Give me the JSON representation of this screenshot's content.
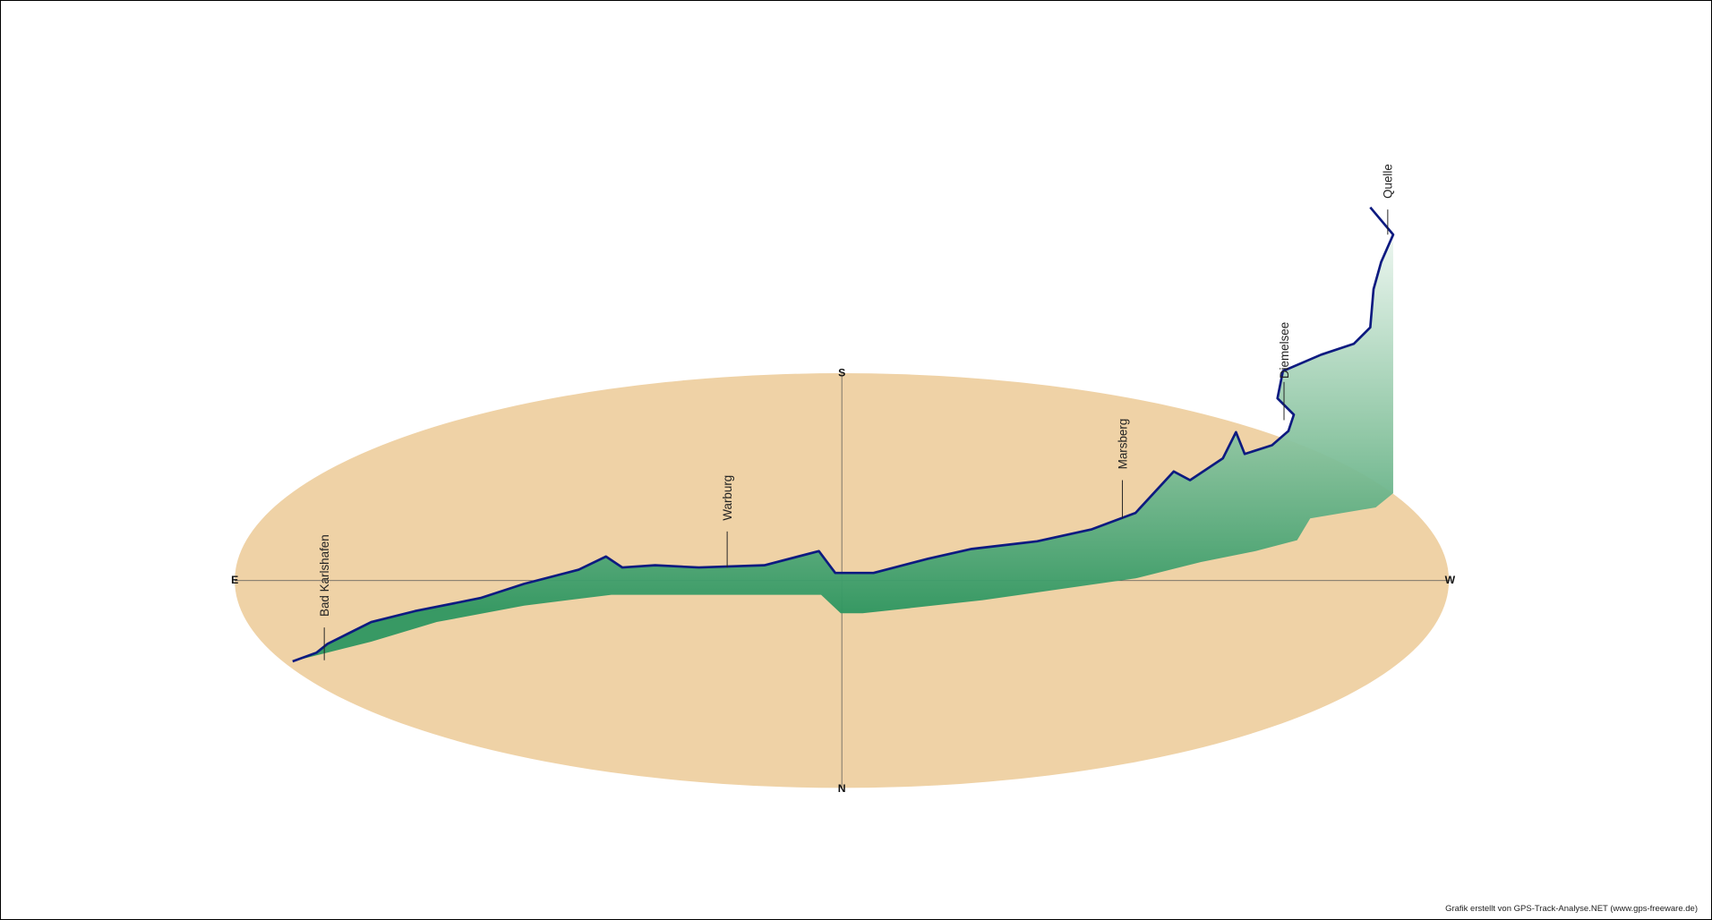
{
  "compass": {
    "south": "S",
    "north": "N",
    "east": "E",
    "west": "W"
  },
  "places": [
    "Bad Karlshafen",
    "Warburg",
    "Marsberg",
    "Diemelsee",
    "Quelle"
  ],
  "credit": "Grafik erstellt von GPS-Track-Analyse.NET (www.gps-freeware.de)"
}
